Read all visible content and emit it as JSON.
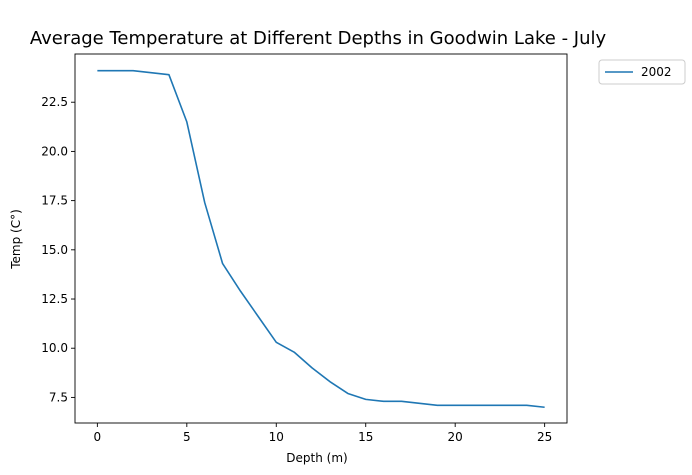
{
  "chart_data": {
    "type": "line",
    "title": "Average Temperature at Different Depths in Goodwin Lake - July",
    "xlabel": "Depth (m)",
    "ylabel": "Temp (C°)",
    "xlim": [
      -1.25,
      26.25
    ],
    "ylim": [
      6.2,
      24.95
    ],
    "xticks": [
      0,
      5,
      10,
      15,
      20,
      25
    ],
    "xtick_labels": [
      "0",
      "5",
      "10",
      "15",
      "20",
      "25"
    ],
    "yticks": [
      7.5,
      10.0,
      12.5,
      15.0,
      17.5,
      20.0,
      22.5
    ],
    "ytick_labels": [
      "7.5",
      "10.0",
      "12.5",
      "15.0",
      "17.5",
      "20.0",
      "22.5"
    ],
    "grid": false,
    "legend_position": "outside-top-right",
    "series": [
      {
        "name": "2002",
        "color": "#1f77b4",
        "x": [
          0,
          1,
          2,
          3,
          4,
          5,
          6,
          7,
          8,
          9,
          10,
          11,
          12,
          13,
          14,
          15,
          16,
          17,
          18,
          19,
          20,
          21,
          22,
          23,
          24,
          25
        ],
        "y": [
          24.1,
          24.1,
          24.1,
          24.0,
          23.9,
          21.5,
          17.4,
          14.3,
          12.9,
          11.6,
          10.3,
          9.8,
          9.0,
          8.3,
          7.7,
          7.4,
          7.3,
          7.3,
          7.2,
          7.1,
          7.1,
          7.1,
          7.1,
          7.1,
          7.1,
          7.0
        ]
      }
    ]
  }
}
